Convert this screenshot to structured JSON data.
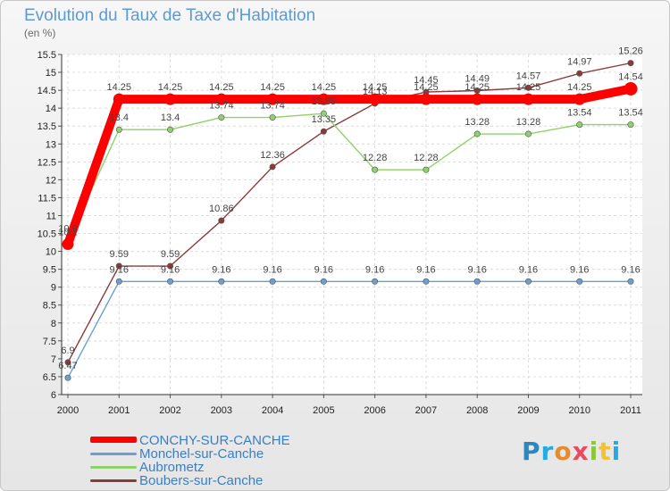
{
  "title": "Evolution du Taux de Taxe d'Habitation",
  "subtitle": "(en %)",
  "logo": "Proxiti",
  "logo_letters": [
    "P",
    "r",
    "o",
    "x",
    "i",
    "t",
    "i"
  ],
  "chart_data": {
    "type": "line",
    "title": "Evolution du Taux de Taxe d'Habitation",
    "ylabel": "(en %)",
    "ylim": [
      6,
      15.5
    ],
    "yticks": [
      "6",
      "6.5",
      "7",
      "7.5",
      "8",
      "8.5",
      "9",
      "9.5",
      "10",
      "10.5",
      "11",
      "11.5",
      "12",
      "12.5",
      "13",
      "13.5",
      "14",
      "14.5",
      "15",
      "15.5"
    ],
    "ytick_values": [
      6,
      6.5,
      7,
      7.5,
      8,
      8.5,
      9,
      9.5,
      10,
      10.5,
      11,
      11.5,
      12,
      12.5,
      13,
      13.5,
      14,
      14.5,
      15,
      15.5
    ],
    "categories": [
      "2000",
      "2001",
      "2002",
      "2003",
      "2004",
      "2005",
      "2006",
      "2007",
      "2008",
      "2009",
      "2010",
      "2011"
    ],
    "legend_position": "bottom-left",
    "series": [
      {
        "name": "CONCHY-SUR-CANCHE",
        "color": "#ff0000",
        "values": [
          10.2,
          14.25,
          14.25,
          14.25,
          14.25,
          14.25,
          14.25,
          14.25,
          14.25,
          14.25,
          14.25,
          14.54
        ],
        "labels": [
          "10.2",
          "14.25",
          "14.25",
          "14.25",
          "14.25",
          "14.25",
          "14.25",
          "14.25",
          "14.25",
          "14.25",
          "14.25",
          "14.54"
        ]
      },
      {
        "name": "Monchel-sur-Canche",
        "color": "#6a9fd4",
        "values": [
          6.47,
          9.16,
          9.16,
          9.16,
          9.16,
          9.16,
          9.16,
          9.16,
          9.16,
          9.16,
          9.16,
          9.16
        ],
        "labels": [
          "6.47",
          "9.16",
          "9.16",
          "9.16",
          "9.16",
          "9.16",
          "9.16",
          "9.16",
          "9.16",
          "9.16",
          "9.16",
          "9.16"
        ]
      },
      {
        "name": "Aubrometz",
        "color": "#8fd16a",
        "values": [
          10.3,
          13.4,
          13.4,
          13.74,
          13.74,
          13.85,
          12.28,
          12.28,
          13.28,
          13.28,
          13.54,
          13.54
        ],
        "labels": [
          "10.3",
          "13.4",
          "13.4",
          "13.74",
          "13.74",
          "13.85",
          "12.28",
          "12.28",
          "13.28",
          "13.28",
          "13.54",
          "13.54"
        ]
      },
      {
        "name": "Boubers-sur-Canche",
        "color": "#8b3a3a",
        "values": [
          6.9,
          9.59,
          9.59,
          10.86,
          12.36,
          13.35,
          14.13,
          14.45,
          14.49,
          14.57,
          14.97,
          15.26
        ],
        "labels": [
          "6.9",
          "9.59",
          "9.59",
          "10.86",
          "12.36",
          "13.35",
          "14.13",
          "14.45",
          "14.49",
          "14.57",
          "14.97",
          "15.26"
        ]
      }
    ]
  }
}
